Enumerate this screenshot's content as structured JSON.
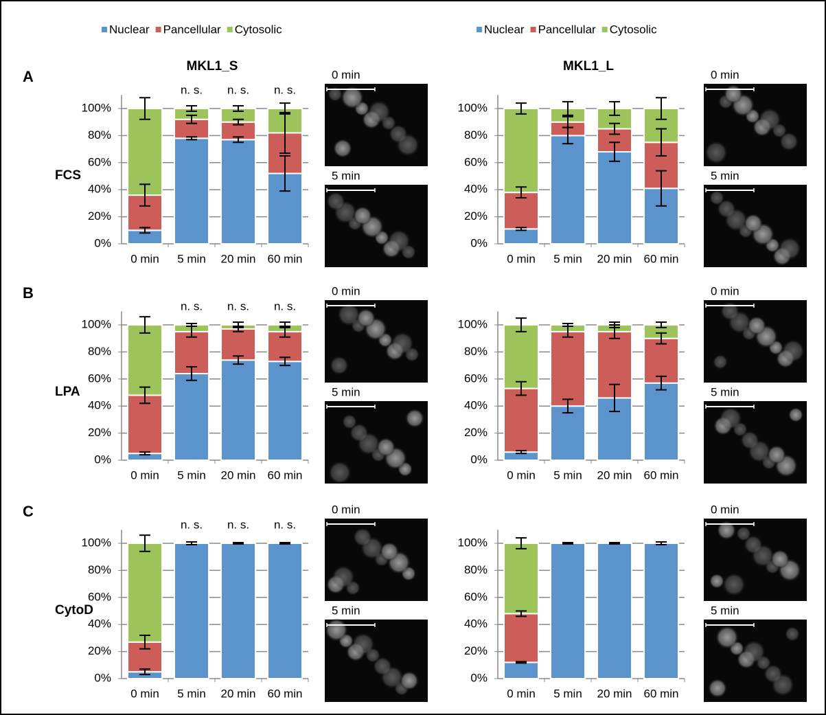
{
  "chart_data": [
    {
      "type": "stacked_bar",
      "panel": "A",
      "title": "MKL1_S",
      "row_label": "FCS",
      "categories": [
        "0 min",
        "5 min",
        "20 min",
        "60 min"
      ],
      "series": [
        {
          "name": "Nuclear",
          "color": "#5b93cc",
          "values": [
            10,
            78,
            77,
            52
          ],
          "errors": [
            2,
            1,
            2,
            13
          ]
        },
        {
          "name": "Pancellular",
          "color": "#cd5d58",
          "values": [
            26,
            14,
            13,
            30
          ],
          "errors": [
            8,
            3,
            2,
            15
          ]
        },
        {
          "name": "Cytosolic",
          "color": "#9cc45a",
          "values": [
            64,
            8,
            10,
            18
          ],
          "errors": [
            8,
            2,
            2,
            4
          ]
        }
      ],
      "annotations": [
        "n. s.",
        "n. s.",
        "n. s."
      ],
      "images": [
        {
          "label": "0 min"
        },
        {
          "label": "5 min"
        }
      ],
      "ylim": [
        0,
        110
      ],
      "yticks": [
        {
          "value": 0,
          "label": "0%"
        },
        {
          "value": 20,
          "label": "20%"
        },
        {
          "value": 40,
          "label": "40%"
        },
        {
          "value": 60,
          "label": "60%"
        },
        {
          "value": 80,
          "label": "80%"
        },
        {
          "value": 100,
          "label": "100%"
        }
      ],
      "grid": true
    },
    {
      "type": "stacked_bar",
      "title": "MKL1_L",
      "categories": [
        "0 min",
        "5 min",
        "20 min",
        "60 min"
      ],
      "series": [
        {
          "name": "Nuclear",
          "color": "#5b93cc",
          "values": [
            11,
            80,
            68,
            41
          ],
          "errors": [
            1,
            6,
            7,
            13
          ]
        },
        {
          "name": "Pancellular",
          "color": "#cd5d58",
          "values": [
            27,
            10,
            17,
            34
          ],
          "errors": [
            4,
            4,
            4,
            10
          ]
        },
        {
          "name": "Cytosolic",
          "color": "#9cc45a",
          "values": [
            62,
            10,
            15,
            25
          ],
          "errors": [
            4,
            5,
            5,
            8
          ]
        }
      ],
      "images": [
        {
          "label": "0 min"
        },
        {
          "label": "5 min"
        }
      ],
      "ylim": [
        0,
        110
      ],
      "yticks": [
        {
          "value": 0,
          "label": "0%"
        },
        {
          "value": 20,
          "label": "20%"
        },
        {
          "value": 40,
          "label": "40%"
        },
        {
          "value": 60,
          "label": "60%"
        },
        {
          "value": 80,
          "label": "80%"
        },
        {
          "value": 100,
          "label": "100%"
        }
      ],
      "grid": true
    },
    {
      "type": "stacked_bar",
      "panel": "B",
      "row_label": "LPA",
      "categories": [
        "0 min",
        "5 min",
        "20 min",
        "60 min"
      ],
      "series": [
        {
          "name": "Nuclear",
          "color": "#5b93cc",
          "values": [
            5,
            64,
            74,
            73
          ],
          "errors": [
            1,
            5,
            3,
            3
          ]
        },
        {
          "name": "Pancellular",
          "color": "#cd5d58",
          "values": [
            43,
            31,
            23,
            22
          ],
          "errors": [
            6,
            4,
            2,
            4
          ]
        },
        {
          "name": "Cytosolic",
          "color": "#9cc45a",
          "values": [
            52,
            5,
            3,
            5
          ],
          "errors": [
            6,
            1,
            2,
            2
          ]
        }
      ],
      "annotations": [
        "n. s.",
        "n. s.",
        "n. s."
      ],
      "images": [
        {
          "label": "0 min"
        },
        {
          "label": "5 min"
        }
      ],
      "ylim": [
        0,
        110
      ],
      "yticks": [
        {
          "value": 0,
          "label": "0%"
        },
        {
          "value": 20,
          "label": "20%"
        },
        {
          "value": 40,
          "label": "40%"
        },
        {
          "value": 60,
          "label": "60%"
        },
        {
          "value": 80,
          "label": "80%"
        },
        {
          "value": 100,
          "label": "100%"
        }
      ],
      "grid": true
    },
    {
      "type": "stacked_bar",
      "categories": [
        "0 min",
        "5 min",
        "20 min",
        "60 min"
      ],
      "series": [
        {
          "name": "Nuclear",
          "color": "#5b93cc",
          "values": [
            6,
            40,
            46,
            57
          ],
          "errors": [
            1,
            5,
            10,
            5
          ]
        },
        {
          "name": "Pancellular",
          "color": "#cd5d58",
          "values": [
            47,
            55,
            49,
            33
          ],
          "errors": [
            5,
            4,
            5,
            4
          ]
        },
        {
          "name": "Cytosolic",
          "color": "#9cc45a",
          "values": [
            47,
            5,
            5,
            10
          ],
          "errors": [
            5,
            1,
            2,
            2
          ]
        }
      ],
      "images": [
        {
          "label": "0 min"
        },
        {
          "label": "5 min"
        }
      ],
      "ylim": [
        0,
        110
      ],
      "yticks": [
        {
          "value": 0,
          "label": "0%"
        },
        {
          "value": 20,
          "label": "20%"
        },
        {
          "value": 40,
          "label": "40%"
        },
        {
          "value": 60,
          "label": "60%"
        },
        {
          "value": 80,
          "label": "80%"
        },
        {
          "value": 100,
          "label": "100%"
        }
      ],
      "grid": true
    },
    {
      "type": "stacked_bar",
      "panel": "C",
      "row_label": "CytoD",
      "categories": [
        "0 min",
        "5 min",
        "20 min",
        "60 min"
      ],
      "series": [
        {
          "name": "Nuclear",
          "color": "#5b93cc",
          "values": [
            5,
            100,
            100,
            100
          ],
          "errors": [
            2,
            1,
            0.5,
            0.5
          ]
        },
        {
          "name": "Pancellular",
          "color": "#cd5d58",
          "values": [
            22,
            0,
            0,
            0
          ],
          "errors": [
            5,
            null,
            null,
            null
          ]
        },
        {
          "name": "Cytosolic",
          "color": "#9cc45a",
          "values": [
            73,
            0,
            0,
            0
          ],
          "errors": [
            6,
            null,
            null,
            null
          ]
        }
      ],
      "annotations": [
        "n. s.",
        "n. s.",
        "n. s."
      ],
      "images": [
        {
          "label": "0 min"
        },
        {
          "label": "5 min"
        }
      ],
      "ylim": [
        0,
        110
      ],
      "yticks": [
        {
          "value": 0,
          "label": "0%"
        },
        {
          "value": 20,
          "label": "20%"
        },
        {
          "value": 40,
          "label": "40%"
        },
        {
          "value": 60,
          "label": "60%"
        },
        {
          "value": 80,
          "label": "80%"
        },
        {
          "value": 100,
          "label": "100%"
        }
      ],
      "grid": true
    },
    {
      "type": "stacked_bar",
      "categories": [
        "0 min",
        "5 min",
        "20 min",
        "60 min"
      ],
      "series": [
        {
          "name": "Nuclear",
          "color": "#5b93cc",
          "values": [
            12,
            100,
            100,
            100
          ],
          "errors": [
            0.5,
            0.5,
            0.5,
            1
          ]
        },
        {
          "name": "Pancellular",
          "color": "#cd5d58",
          "values": [
            36,
            0,
            0,
            0
          ],
          "errors": [
            2,
            null,
            null,
            null
          ]
        },
        {
          "name": "Cytosolic",
          "color": "#9cc45a",
          "values": [
            52,
            0,
            0,
            0
          ],
          "errors": [
            4,
            null,
            null,
            null
          ]
        }
      ],
      "images": [
        {
          "label": "0 min"
        },
        {
          "label": "5 min"
        }
      ],
      "ylim": [
        0,
        110
      ],
      "yticks": [
        {
          "value": 0,
          "label": "0%"
        },
        {
          "value": 20,
          "label": "20%"
        },
        {
          "value": 40,
          "label": "40%"
        },
        {
          "value": 60,
          "label": "60%"
        },
        {
          "value": 80,
          "label": "80%"
        },
        {
          "value": 100,
          "label": "100%"
        }
      ],
      "grid": true
    }
  ]
}
